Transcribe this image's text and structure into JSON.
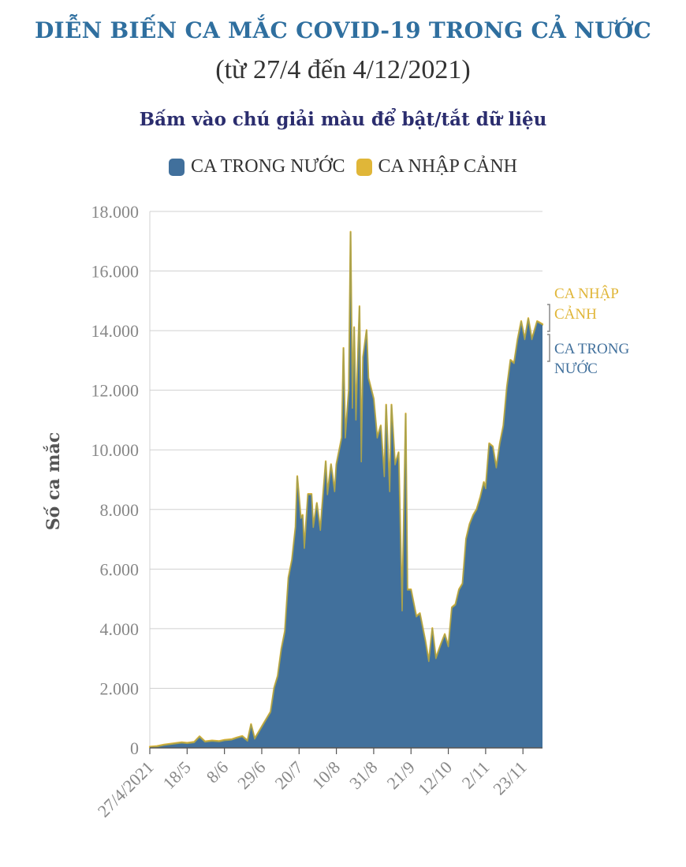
{
  "title": "DIỄN BIẾN CA MẮC COVID-19 TRONG CẢ NƯỚC",
  "subtitle": "(từ 27/4 đến 4/12/2021)",
  "instruction": "Bấm vào chú giải màu để bật/tắt dữ liệu",
  "colors": {
    "domestic": "#41709c",
    "imported": "#e0b638",
    "title": "#2f6f9f",
    "grid": "#d0d0d0"
  },
  "legend": [
    {
      "label": "CA TRONG NƯỚC",
      "color": "#41709c"
    },
    {
      "label": "CA NHẬP CẢNH",
      "color": "#e0b638"
    }
  ],
  "annotation": {
    "imported_line1": "CA NHẬP",
    "imported_line2": "CẢNH",
    "domestic_line1": "CA TRONG",
    "domestic_line2": "NƯỚC"
  },
  "chart_data": {
    "type": "area",
    "stacked": true,
    "ylabel": "Số ca mắc",
    "ylim": [
      0,
      18000
    ],
    "yticks": [
      0,
      2000,
      4000,
      6000,
      8000,
      10000,
      12000,
      14000,
      16000,
      18000
    ],
    "ytick_labels": [
      "0",
      "2.000",
      "4.000",
      "6.000",
      "8.000",
      "10.000",
      "12.000",
      "14.000",
      "16.000",
      "18.000"
    ],
    "xlim": [
      "2021-04-27",
      "2021-12-04"
    ],
    "xticks": [
      "2021-04-27",
      "2021-05-18",
      "2021-06-08",
      "2021-06-29",
      "2021-07-20",
      "2021-08-10",
      "2021-08-31",
      "2021-09-21",
      "2021-10-12",
      "2021-11-02",
      "2021-11-23"
    ],
    "xtick_labels": [
      "27/4/2021",
      "18/5",
      "8/6",
      "29/6",
      "20/7",
      "10/8",
      "31/8",
      "21/9",
      "12/10",
      "2/11",
      "23/11"
    ],
    "grid": true,
    "series": [
      {
        "name": "CA TRONG NƯỚC",
        "points": [
          [
            "2021-04-27",
            20
          ],
          [
            "2021-05-01",
            40
          ],
          [
            "2021-05-05",
            90
          ],
          [
            "2021-05-10",
            130
          ],
          [
            "2021-05-15",
            170
          ],
          [
            "2021-05-18",
            150
          ],
          [
            "2021-05-22",
            180
          ],
          [
            "2021-05-25",
            370
          ],
          [
            "2021-05-28",
            200
          ],
          [
            "2021-06-01",
            230
          ],
          [
            "2021-06-05",
            210
          ],
          [
            "2021-06-08",
            250
          ],
          [
            "2021-06-12",
            270
          ],
          [
            "2021-06-15",
            330
          ],
          [
            "2021-06-18",
            380
          ],
          [
            "2021-06-21",
            230
          ],
          [
            "2021-06-23",
            780
          ],
          [
            "2021-06-25",
            300
          ],
          [
            "2021-06-27",
            500
          ],
          [
            "2021-06-29",
            700
          ],
          [
            "2021-07-02",
            1000
          ],
          [
            "2021-07-04",
            1200
          ],
          [
            "2021-07-06",
            2000
          ],
          [
            "2021-07-08",
            2400
          ],
          [
            "2021-07-10",
            3300
          ],
          [
            "2021-07-12",
            3900
          ],
          [
            "2021-07-14",
            5700
          ],
          [
            "2021-07-16",
            6300
          ],
          [
            "2021-07-18",
            7400
          ],
          [
            "2021-07-19",
            9100
          ],
          [
            "2021-07-21",
            7700
          ],
          [
            "2021-07-22",
            7800
          ],
          [
            "2021-07-23",
            6700
          ],
          [
            "2021-07-25",
            8500
          ],
          [
            "2021-07-27",
            8500
          ],
          [
            "2021-07-28",
            7400
          ],
          [
            "2021-07-30",
            8200
          ],
          [
            "2021-08-01",
            7300
          ],
          [
            "2021-08-02",
            8100
          ],
          [
            "2021-08-04",
            9600
          ],
          [
            "2021-08-05",
            8500
          ],
          [
            "2021-08-07",
            9500
          ],
          [
            "2021-08-09",
            8600
          ],
          [
            "2021-08-10",
            9500
          ],
          [
            "2021-08-13",
            10400
          ],
          [
            "2021-08-14",
            13400
          ],
          [
            "2021-08-15",
            10400
          ],
          [
            "2021-08-17",
            12000
          ],
          [
            "2021-08-18",
            17300
          ],
          [
            "2021-08-19",
            11400
          ],
          [
            "2021-08-20",
            14100
          ],
          [
            "2021-08-21",
            11000
          ],
          [
            "2021-08-23",
            14800
          ],
          [
            "2021-08-24",
            9600
          ],
          [
            "2021-08-25",
            13100
          ],
          [
            "2021-08-27",
            14000
          ],
          [
            "2021-08-28",
            12400
          ],
          [
            "2021-08-31",
            11700
          ],
          [
            "2021-09-02",
            10400
          ],
          [
            "2021-09-04",
            10800
          ],
          [
            "2021-09-06",
            9100
          ],
          [
            "2021-09-07",
            11500
          ],
          [
            "2021-09-09",
            8600
          ],
          [
            "2021-09-10",
            11500
          ],
          [
            "2021-09-12",
            9500
          ],
          [
            "2021-09-14",
            9900
          ],
          [
            "2021-09-16",
            4600
          ],
          [
            "2021-09-18",
            11200
          ],
          [
            "2021-09-19",
            5300
          ],
          [
            "2021-09-21",
            5300
          ],
          [
            "2021-09-24",
            4400
          ],
          [
            "2021-09-26",
            4500
          ],
          [
            "2021-09-29",
            3600
          ],
          [
            "2021-10-01",
            2900
          ],
          [
            "2021-10-03",
            4000
          ],
          [
            "2021-10-05",
            3000
          ],
          [
            "2021-10-08",
            3500
          ],
          [
            "2021-10-10",
            3800
          ],
          [
            "2021-10-12",
            3400
          ],
          [
            "2021-10-14",
            4700
          ],
          [
            "2021-10-16",
            4800
          ],
          [
            "2021-10-18",
            5300
          ],
          [
            "2021-10-20",
            5500
          ],
          [
            "2021-10-22",
            7000
          ],
          [
            "2021-10-24",
            7500
          ],
          [
            "2021-10-26",
            7800
          ],
          [
            "2021-10-28",
            8000
          ],
          [
            "2021-10-30",
            8400
          ],
          [
            "2021-11-01",
            8900
          ],
          [
            "2021-11-02",
            8700
          ],
          [
            "2021-11-04",
            10200
          ],
          [
            "2021-11-06",
            10100
          ],
          [
            "2021-11-08",
            9400
          ],
          [
            "2021-11-10",
            10200
          ],
          [
            "2021-11-12",
            10800
          ],
          [
            "2021-11-14",
            12100
          ],
          [
            "2021-11-16",
            13000
          ],
          [
            "2021-11-18",
            12900
          ],
          [
            "2021-11-20",
            13700
          ],
          [
            "2021-11-22",
            14300
          ],
          [
            "2021-11-24",
            13700
          ],
          [
            "2021-11-26",
            14400
          ],
          [
            "2021-11-28",
            13700
          ],
          [
            "2021-12-01",
            14300
          ],
          [
            "2021-12-04",
            14200
          ]
        ]
      },
      {
        "name": "CA NHẬP CẢNH",
        "value_note_constant": true,
        "points": [
          [
            "2021-04-27",
            20
          ],
          [
            "2021-12-04",
            20
          ]
        ]
      }
    ]
  }
}
